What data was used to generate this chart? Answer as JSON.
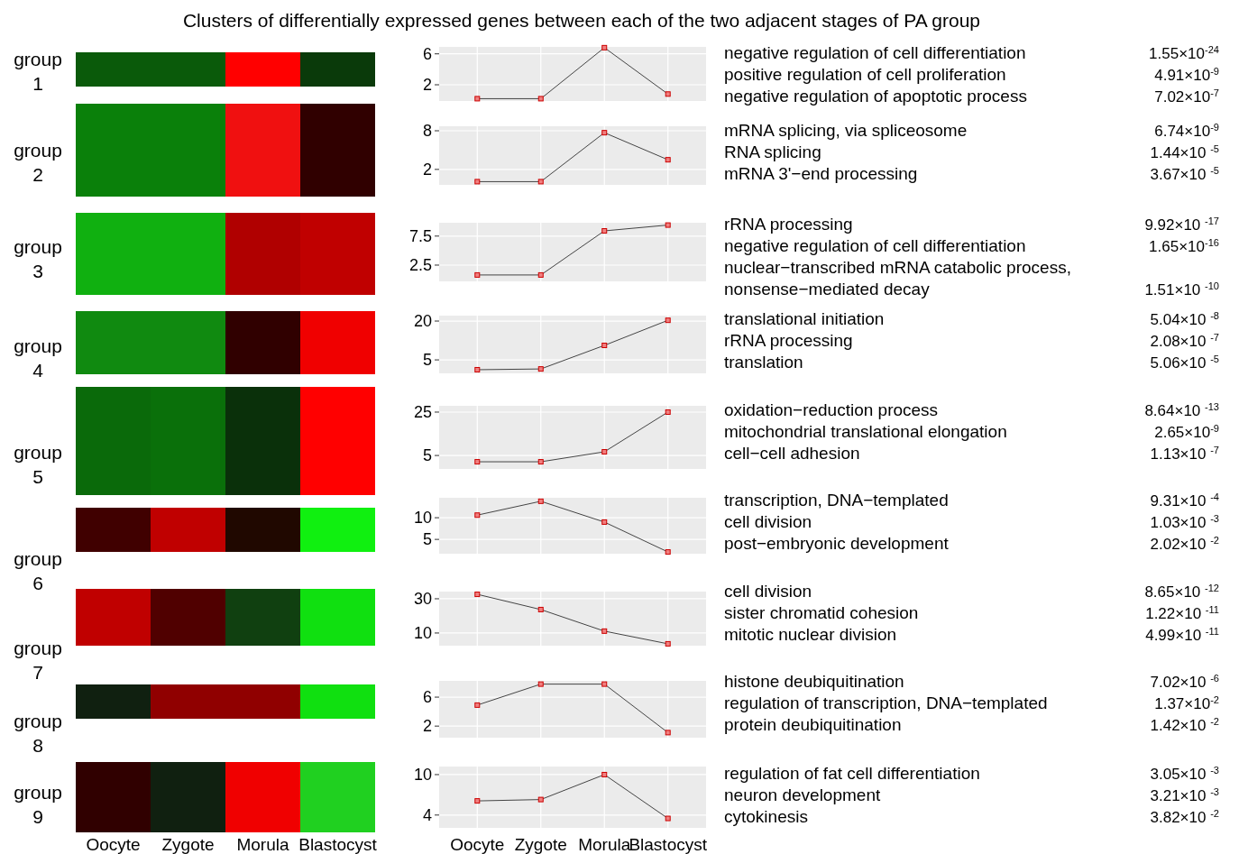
{
  "chart_data": [
    {
      "type": "other",
      "title": "Clusters of differentially expressed genes between each of the two adjacent stages of PA group",
      "categories": [
        "Oocyte",
        "Zygote",
        "Morula",
        "Blastocyst"
      ]
    },
    {
      "type": "line",
      "categories": [
        null,
        null,
        null,
        null
      ],
      "series": [
        {
          "color": "#444444",
          "values": [
            0.2,
            0.2,
            6.8,
            0.8
          ]
        }
      ],
      "ylim": [
        -0.1,
        6.9
      ],
      "yticks": [
        2,
        6
      ],
      "grid": true,
      "marker": "square",
      "tick_labels": "y"
    },
    {
      "type": "line",
      "categories": [
        null,
        null,
        null,
        null
      ],
      "series": [
        {
          "color": "#444444",
          "values": [
            0.1,
            0.1,
            7.7,
            3.5
          ]
        }
      ],
      "ylim": [
        -0.4,
        8.7
      ],
      "yticks": [
        2,
        8
      ],
      "grid": true,
      "marker": "square",
      "tick_labels": "y"
    },
    {
      "type": "line",
      "categories": [
        null,
        null,
        null,
        null
      ],
      "series": [
        {
          "color": "#444444",
          "values": [
            0.8,
            0.8,
            8.4,
            9.4
          ]
        }
      ],
      "ylim": [
        -0.3,
        9.8
      ],
      "yticks": [
        2.5,
        7.5
      ],
      "grid": true,
      "marker": "square",
      "tick_labels": "y"
    },
    {
      "type": "line",
      "categories": [
        null,
        null,
        null,
        null
      ],
      "series": [
        {
          "color": "#444444",
          "values": [
            1.2,
            1.5,
            10.6,
            20.3
          ]
        }
      ],
      "ylim": [
        -0.2,
        22.1
      ],
      "yticks": [
        5,
        20
      ],
      "grid": true,
      "marker": "square",
      "tick_labels": "y"
    },
    {
      "type": "line",
      "categories": [
        null,
        null,
        null,
        null
      ],
      "series": [
        {
          "color": "#444444",
          "values": [
            2.1,
            2.1,
            6.7,
            25
          ]
        }
      ],
      "ylim": [
        -1.2,
        27.9
      ],
      "yticks": [
        5,
        25
      ],
      "grid": true,
      "marker": "square",
      "tick_labels": "y"
    },
    {
      "type": "line",
      "categories": [
        null,
        null,
        null,
        null
      ],
      "series": [
        {
          "color": "#444444",
          "values": [
            10.6,
            13.8,
            9.0,
            2.1
          ]
        }
      ],
      "ylim": [
        1.7,
        14.6
      ],
      "yticks": [
        5,
        10
      ],
      "grid": true,
      "marker": "square",
      "tick_labels": "y"
    },
    {
      "type": "line",
      "categories": [
        null,
        null,
        null,
        null
      ],
      "series": [
        {
          "color": "#444444",
          "values": [
            32.6,
            23.7,
            11.1,
            3.7
          ]
        }
      ],
      "ylim": [
        2.6,
        34.2
      ],
      "yticks": [
        10,
        30
      ],
      "grid": true,
      "marker": "square",
      "tick_labels": "y"
    },
    {
      "type": "line",
      "categories": [
        null,
        null,
        null,
        null
      ],
      "series": [
        {
          "color": "#444444",
          "values": [
            4.9,
            7.8,
            7.8,
            1.1
          ]
        }
      ],
      "ylim": [
        0.4,
        8.25
      ],
      "yticks": [
        2,
        6
      ],
      "grid": true,
      "marker": "square",
      "tick_labels": "y"
    },
    {
      "type": "line",
      "categories": [
        "Oocyte",
        "Zygote",
        "Morula",
        "Blastocyst"
      ],
      "series": [
        {
          "color": "#444444",
          "values": [
            6.1,
            6.3,
            10,
            3.5
          ]
        }
      ],
      "ylim": [
        2.1,
        11.2
      ],
      "yticks": [
        4,
        10
      ],
      "grid": true,
      "marker": "square"
    },
    {
      "type": "other",
      "title": "group 1",
      "annotations": [
        "negative regulation of cell differentiation",
        "1.55×10$^{-24}$",
        "positive regulation of cell proliferation",
        "4.91×10$^{-9}$",
        "negative regulation of apoptotic process",
        "7.02×10$^{-7}$"
      ]
    },
    {
      "type": "other",
      "title": "group 2",
      "annotations": [
        "mRNA splicing, via spliceosome",
        "6.74×10$^{-9}$",
        "RNA splicing",
        "1.44×10 $^{-5}$",
        "mRNA 3'−end processing",
        "3.67×10 $^{-5}$"
      ]
    },
    {
      "type": "other",
      "title": "group 3",
      "annotations": [
        "rRNA processing",
        "9.92×10 $^{-17}$",
        "negative regulation of cell differentiation",
        "1.65×10$^{-16}$",
        "nuclear−transcribed mRNA catabolic process, nonsense−mediated decay",
        "1.51×10 $^{-10}$"
      ]
    },
    {
      "type": "other",
      "title": "group 4",
      "annotations": [
        "translational initiation",
        "5.04×10 $^{-8}$",
        "rRNA processing",
        "2.08×10 $^{-7}$",
        "translation",
        "5.06×10 $^{-5}$"
      ]
    },
    {
      "type": "other",
      "title": "group 5",
      "annotations": [
        "oxidation−reduction process",
        "8.64×10 $^{-13}$",
        "mitochondrial translational elongation",
        "2.65×10$^{-9}$",
        "cell−cell adhesion",
        "1.13×10 $^{-7}$"
      ]
    },
    {
      "type": "other",
      "title": "group 6",
      "annotations": [
        "transcription, DNA−templated",
        "9.31×10 $^{-4}$",
        "cell division",
        "1.03×10 $^{-3}$",
        "post−embryonic development",
        "2.02×10 $^{-2}$"
      ]
    },
    {
      "type": "other",
      "title": "group 7",
      "annotations": [
        "cell division",
        "8.65×10 $^{-12}$",
        "sister chromatid cohesion",
        "1.22×10 $^{-11}$",
        "mitotic nuclear division",
        "4.99×10 $^{-11}$"
      ]
    },
    {
      "type": "other",
      "title": "group 8",
      "annotations": [
        "histone deubiquitination",
        "7.02×10 $^{-6}$",
        "regulation of transcription, DNA−templated",
        "1.37×10$^{-2}$",
        "protein deubiquitination",
        "1.42×10 $^{-2}$"
      ]
    },
    {
      "type": "other",
      "title": "group 9",
      "annotations": [
        "regulation of fat cell differentiation",
        "3.05×10 $^{-3}$",
        "neuron development",
        "3.21×10 $^{-3}$",
        "cytokinesis",
        "3.82×10 $^{-2}$"
      ]
    }
  ]
}
